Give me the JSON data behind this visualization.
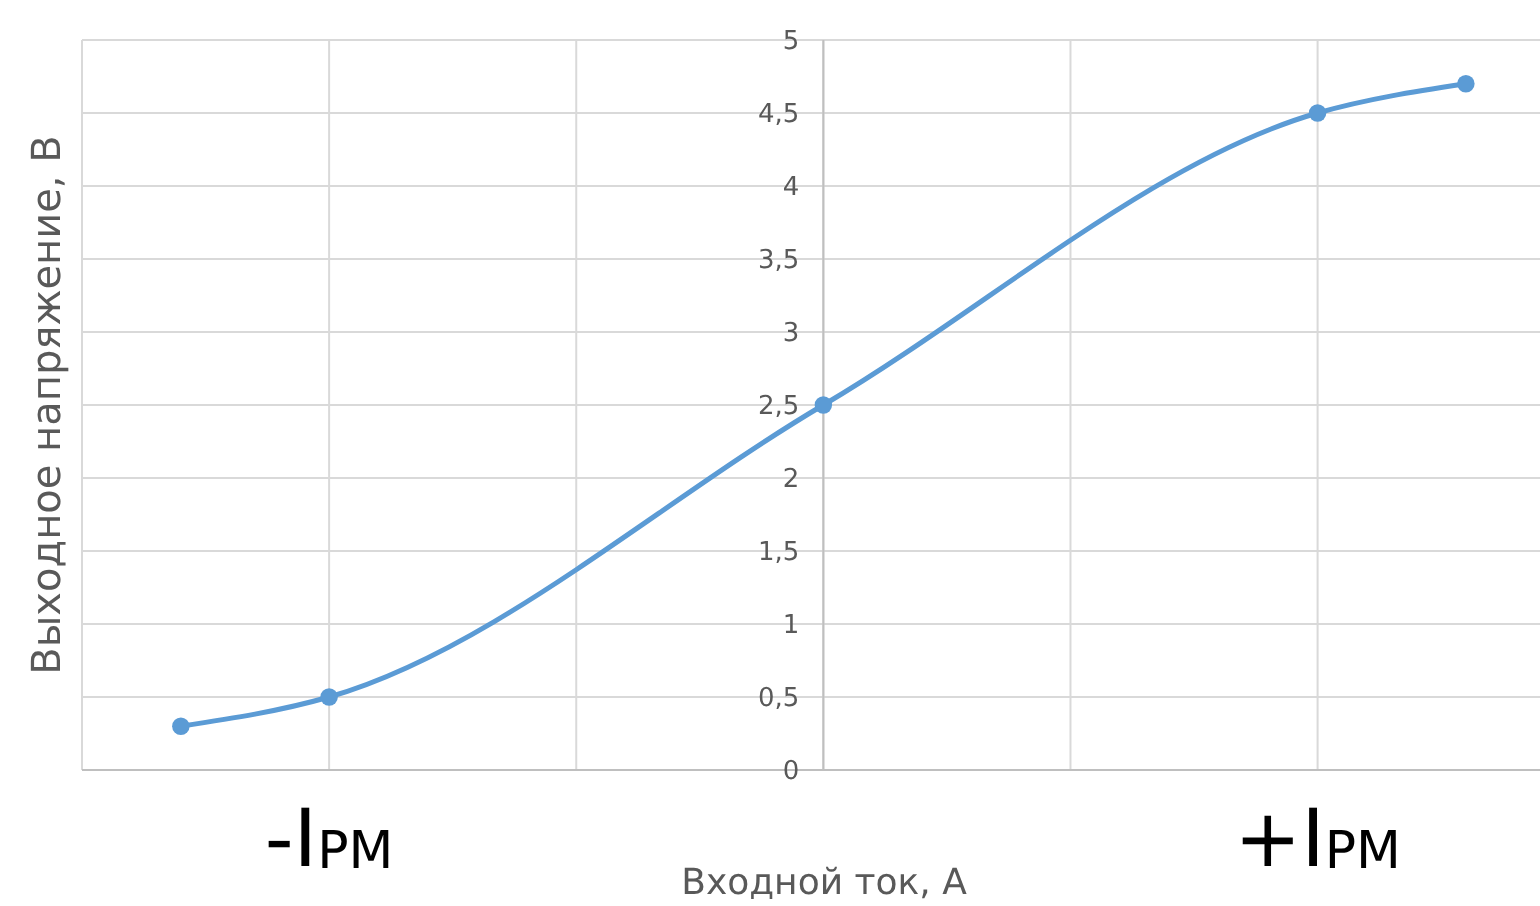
{
  "chart_data": {
    "type": "line",
    "xlabel": "Входной ток, А",
    "ylabel": "Выходное напряжение, В",
    "categories": [
      null,
      null,
      null,
      "-I$_{PM}$",
      null,
      null,
      null,
      null,
      null,
      null,
      null,
      null,
      null,
      null,
      null,
      null,
      null,
      null,
      null,
      null,
      null,
      null,
      null,
      "+I$_{PM}$",
      null,
      null,
      null
    ],
    "series": [
      {
        "color": "#5b9bd5",
        "values": [
          0.3,
          null,
          null,
          0.5,
          null,
          null,
          null,
          null,
          null,
          null,
          null,
          null,
          null,
          2.5,
          null,
          null,
          null,
          null,
          null,
          null,
          null,
          null,
          null,
          4.5,
          null,
          null,
          4.7
        ]
      }
    ],
    "ylim": [
      0,
      5
    ],
    "yticks": [
      0,
      {
        "value": 0.5,
        "label": "0,5"
      },
      1,
      {
        "value": 1.5,
        "label": "1,5"
      },
      2,
      {
        "value": 2.5,
        "label": "2,5"
      },
      3,
      {
        "value": 3.5,
        "label": "3,5"
      },
      4,
      {
        "value": 4.5,
        "label": "4,5"
      },
      5
    ],
    "grid": true,
    "marker": "circle",
    "line_style": "solid"
  }
}
